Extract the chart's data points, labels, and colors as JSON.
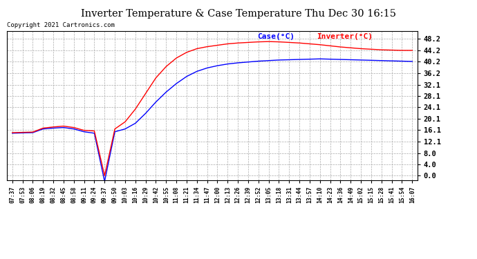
{
  "title": "Inverter Temperature & Case Temperature Thu Dec 30 16:15",
  "copyright": "Copyright 2021 Cartronics.com",
  "legend_case": "Case(°C)",
  "legend_inverter": "Inverter(°C)",
  "case_color": "blue",
  "inverter_color": "red",
  "yticks": [
    0.0,
    4.0,
    8.0,
    12.1,
    16.1,
    20.1,
    24.1,
    28.1,
    32.1,
    36.2,
    40.2,
    44.2,
    48.2
  ],
  "ylim": [
    -1.5,
    51.0
  ],
  "bg_color": "#ffffff",
  "grid_color": "#aaaaaa",
  "xtick_labels": [
    "07:37",
    "07:53",
    "08:06",
    "08:19",
    "08:32",
    "08:45",
    "08:58",
    "09:11",
    "09:24",
    "09:37",
    "09:50",
    "10:03",
    "10:16",
    "10:29",
    "10:42",
    "10:55",
    "11:08",
    "11:21",
    "11:34",
    "11:47",
    "12:00",
    "12:13",
    "12:26",
    "12:39",
    "12:52",
    "13:05",
    "13:18",
    "13:31",
    "13:44",
    "13:57",
    "14:10",
    "14:23",
    "14:36",
    "14:49",
    "15:02",
    "15:15",
    "15:28",
    "15:41",
    "15:54",
    "16:07"
  ],
  "case_data_y": [
    15.0,
    15.1,
    15.2,
    16.5,
    16.8,
    17.0,
    16.5,
    15.5,
    15.0,
    -2.0,
    15.5,
    16.5,
    18.5,
    22.0,
    26.0,
    29.5,
    32.5,
    35.0,
    36.8,
    38.0,
    38.8,
    39.4,
    39.8,
    40.1,
    40.4,
    40.6,
    40.8,
    40.9,
    41.0,
    41.1,
    41.2,
    41.1,
    41.0,
    40.9,
    40.8,
    40.7,
    40.6,
    40.5,
    40.4,
    40.3
  ],
  "inverter_data_y": [
    15.2,
    15.3,
    15.4,
    16.8,
    17.2,
    17.5,
    17.0,
    16.0,
    15.8,
    0.0,
    16.5,
    19.0,
    23.5,
    29.0,
    34.5,
    38.5,
    41.5,
    43.5,
    44.8,
    45.5,
    46.0,
    46.5,
    46.8,
    47.0,
    47.2,
    47.3,
    47.2,
    47.0,
    46.8,
    46.5,
    46.2,
    45.8,
    45.4,
    45.1,
    44.8,
    44.6,
    44.4,
    44.3,
    44.2,
    44.2
  ]
}
